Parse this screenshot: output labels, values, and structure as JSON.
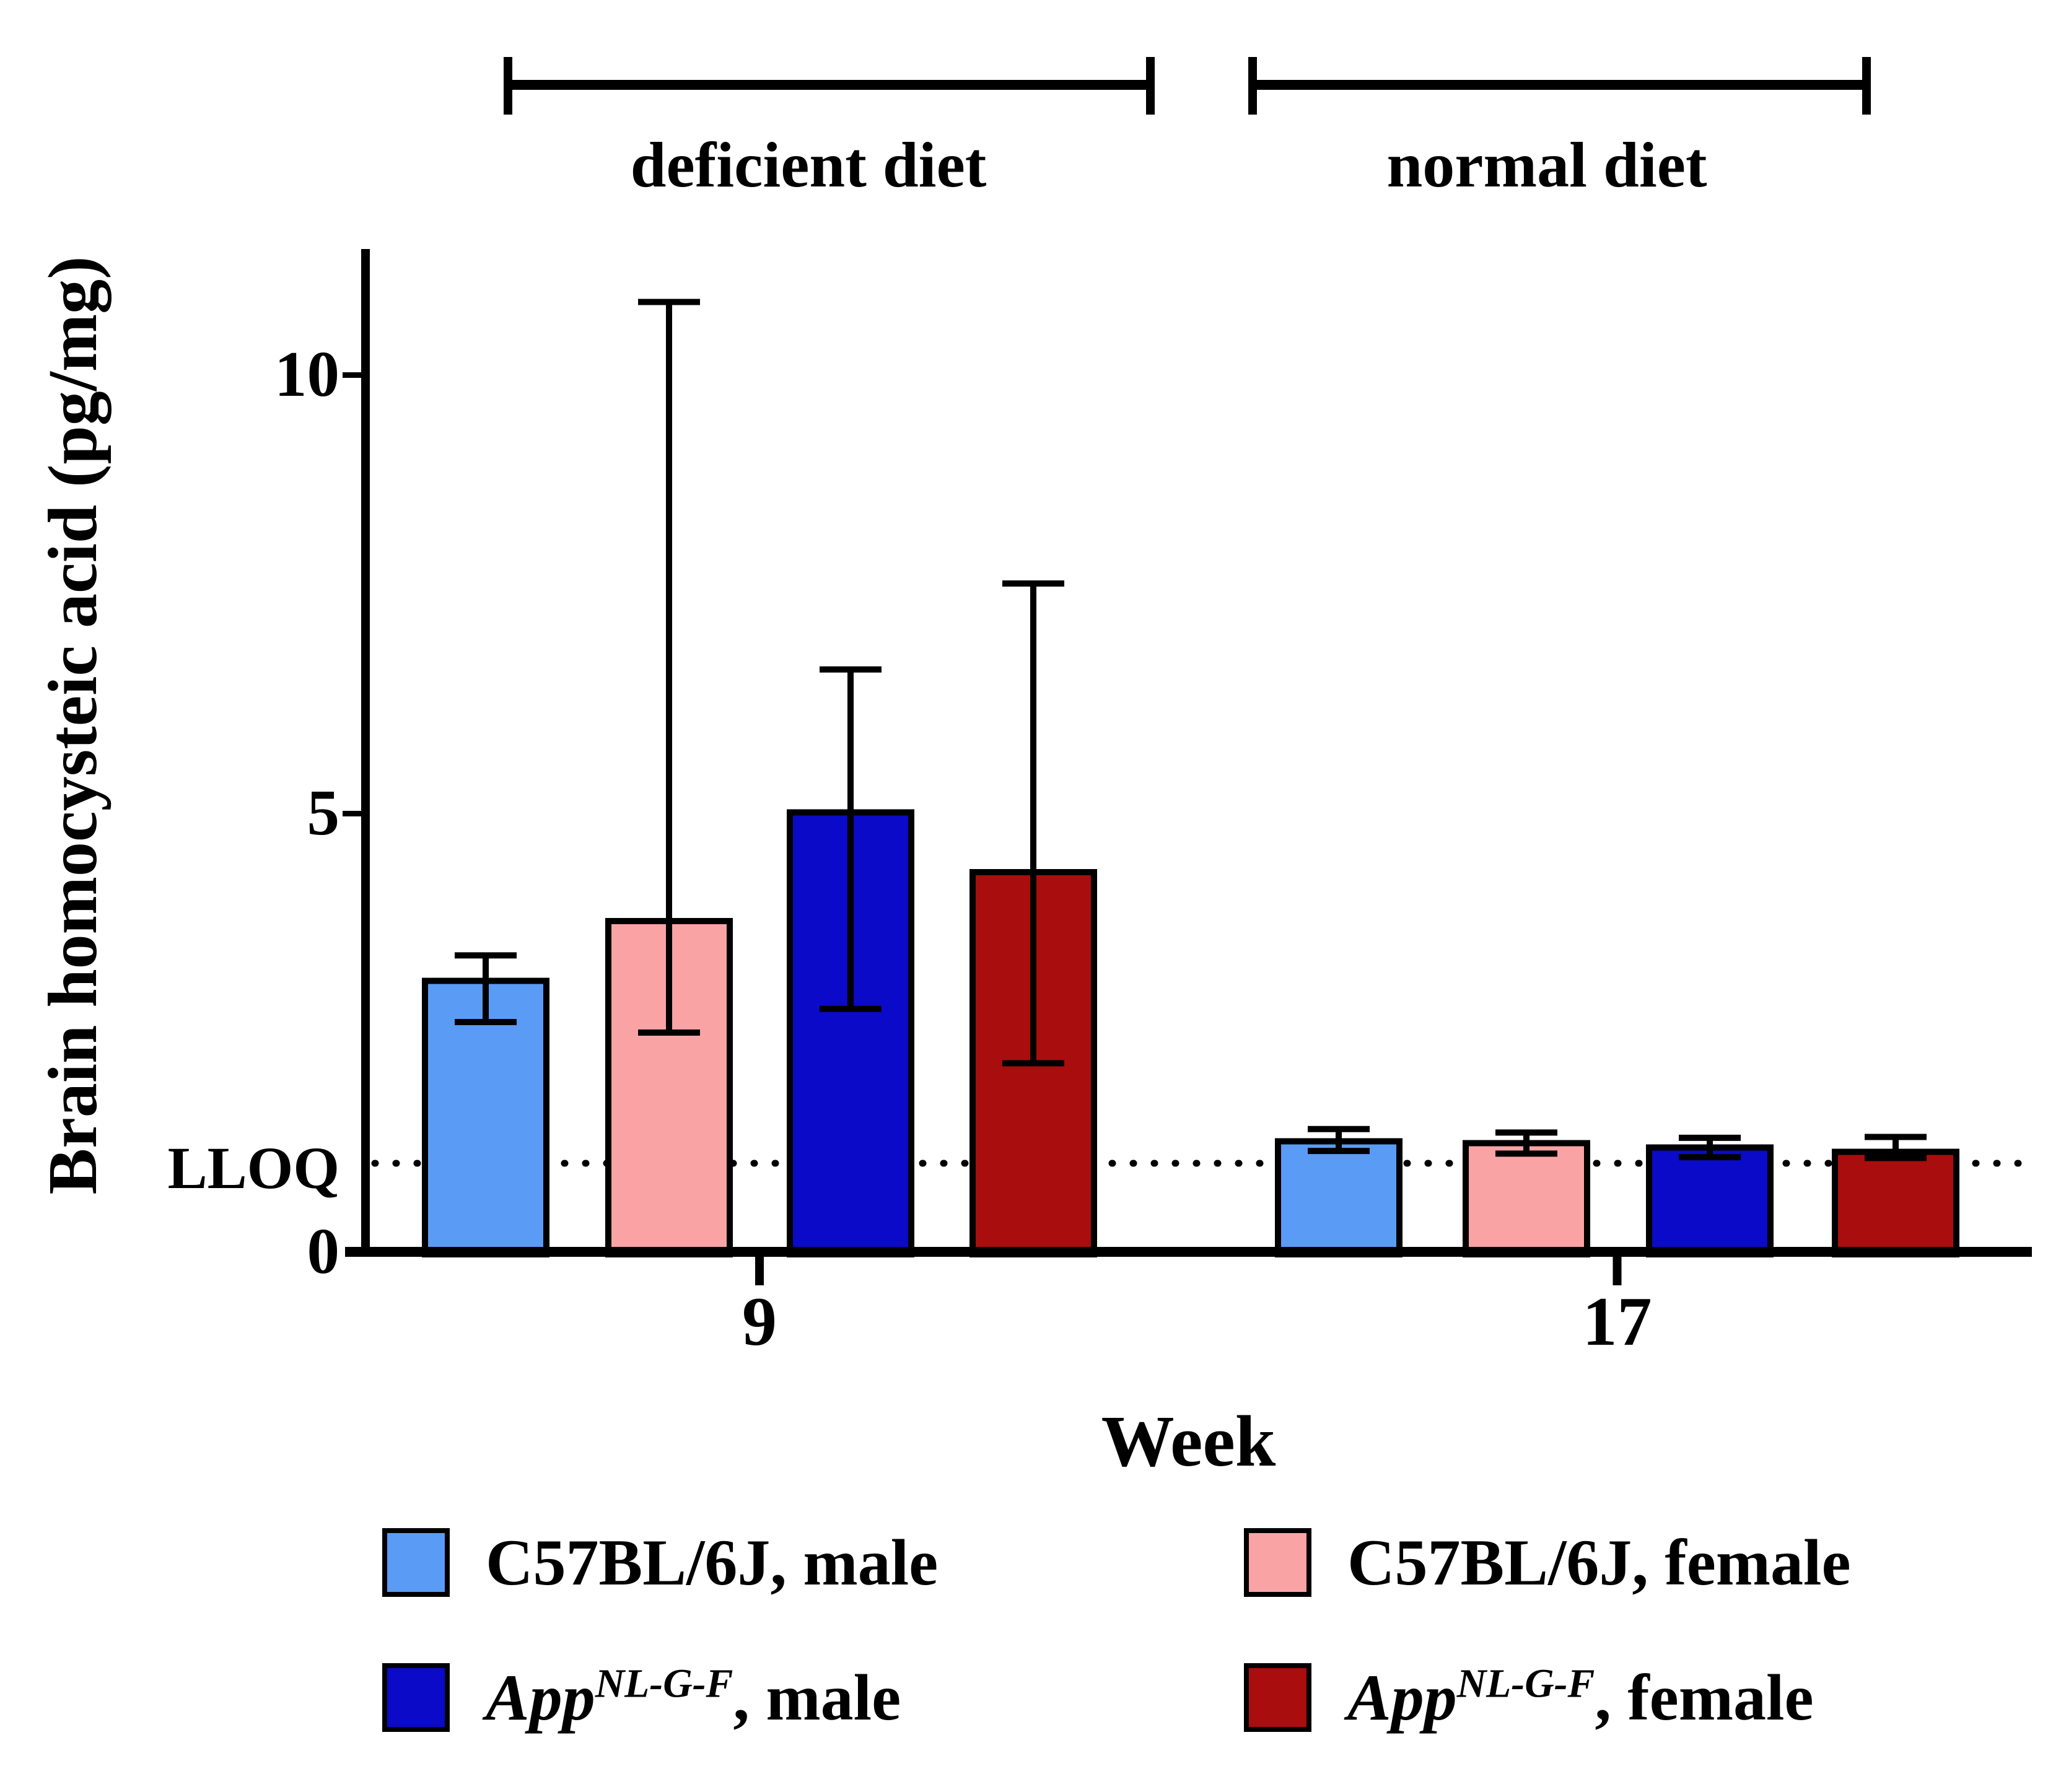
{
  "figure": {
    "background": "#ffffff",
    "line_color": "#000000"
  },
  "chart_data": {
    "type": "bar",
    "title": "",
    "xlabel": "Week",
    "ylabel": "Brain homocysteic acid (pg/mg)",
    "ylim": [
      0,
      11.45
    ],
    "grid": "off",
    "legend_position": "bottom",
    "categories": [
      "9",
      "17"
    ],
    "yticks": [
      {
        "label": "10",
        "value": 10
      },
      {
        "label": "5",
        "value": 5
      },
      {
        "label": "0",
        "value": 0
      }
    ],
    "lloq": {
      "label": "LLOQ",
      "value": 1.01,
      "line_style": "dotted"
    },
    "diet_annotations": [
      {
        "label": "deficient diet",
        "applies_to_week": "9"
      },
      {
        "label": "normal diet",
        "applies_to_week": "17"
      }
    ],
    "series": [
      {
        "name": "C57BL/6J, male",
        "color": "#5A9BF5",
        "values": [
          3.09,
          1.26
        ],
        "err_up": [
          3.38,
          1.4
        ],
        "err_down": [
          2.62,
          1.15
        ]
      },
      {
        "name": "C57BL/6J, female",
        "color": "#FAA3A5",
        "values": [
          3.77,
          1.24
        ],
        "err_up": [
          10.83,
          1.36
        ],
        "err_down": [
          2.5,
          1.12
        ]
      },
      {
        "name": "App NL-G-F, male",
        "color": "#0A0AC8",
        "values": [
          5.01,
          1.19
        ],
        "err_up": [
          6.64,
          1.3
        ],
        "err_down": [
          2.77,
          1.08
        ]
      },
      {
        "name": "App NL-G-F, female",
        "color": "#AA0D0D",
        "values": [
          4.33,
          1.14
        ],
        "err_up": [
          7.62,
          1.31
        ],
        "err_down": [
          2.15,
          1.07
        ]
      }
    ]
  },
  "legend": {
    "items": [
      {
        "pre": "C57BL/6J, male",
        "it": "",
        "sup": "",
        "post": ""
      },
      {
        "pre": "C57BL/6J, female",
        "it": "",
        "sup": "",
        "post": ""
      },
      {
        "pre": "",
        "it": "App",
        "sup": "NL-G-F",
        "post": ", male"
      },
      {
        "pre": "",
        "it": "App",
        "sup": "NL-G-F",
        "post": ", female"
      }
    ]
  }
}
